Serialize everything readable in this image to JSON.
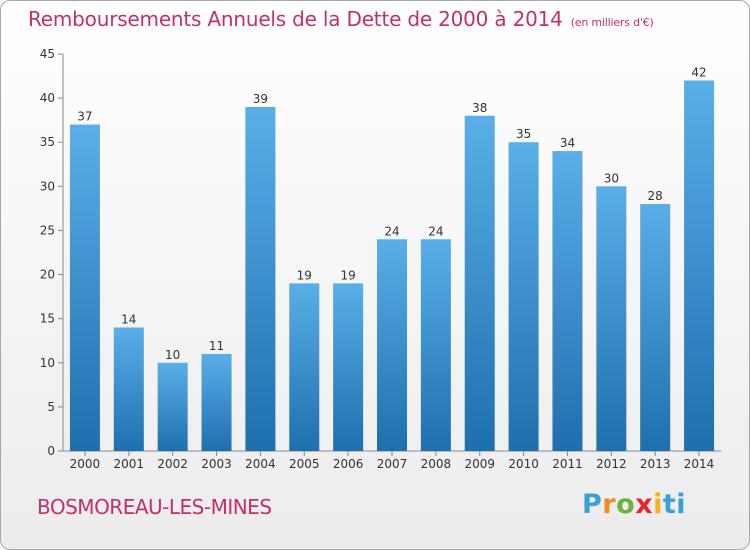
{
  "header": {
    "title": "Remboursements Annuels de la Dette de 2000 à 2014",
    "unit": "(en milliers d'€)"
  },
  "footer": {
    "commune": "BOSMOREAU-LES-MINES",
    "brand_letters": [
      "P",
      "r",
      "o",
      "x",
      "i",
      "ti"
    ]
  },
  "colors": {
    "bar_top": "#5aafe8",
    "bar_bottom": "#1e6fae",
    "title": "#c2306b"
  },
  "chart_data": {
    "type": "bar",
    "title": "Remboursements Annuels de la Dette de 2000 à 2014",
    "unit": "(en milliers d'€)",
    "categories": [
      "2000",
      "2001",
      "2002",
      "2003",
      "2004",
      "2005",
      "2006",
      "2007",
      "2008",
      "2009",
      "2010",
      "2011",
      "2012",
      "2013",
      "2014"
    ],
    "values": [
      37,
      14,
      10,
      11,
      39,
      19,
      19,
      24,
      24,
      38,
      35,
      34,
      30,
      28,
      42
    ],
    "ylim": [
      0,
      45
    ],
    "yticks": [
      0,
      5,
      10,
      15,
      20,
      25,
      30,
      35,
      40,
      45
    ],
    "grid": false,
    "data_labels": true
  }
}
